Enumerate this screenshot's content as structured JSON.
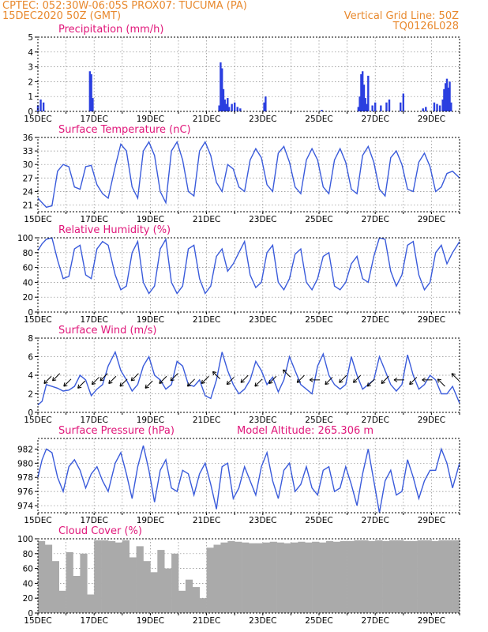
{
  "header": {
    "line1": "CPTEC:   052:30W-06:05S   PROX07: TUCUMA (PA)",
    "line2_left": "15DEC2020 50Z (GMT)",
    "line2_right": "Vertical Grid Line: 50Z",
    "line3_right": "TQ0126L028"
  },
  "colors": {
    "line": "#3a5bdb",
    "bar": "#2b3fe0",
    "cloud": "#aaaaaa",
    "title": "#e0177a",
    "header": "#e8892e",
    "arrow": "#000000"
  },
  "x_axis": {
    "ticks": [
      "15DEC",
      "17DEC",
      "19DEC",
      "21DEC",
      "23DEC",
      "25DEC",
      "27DEC",
      "29DEC"
    ],
    "range_days": [
      15,
      30
    ]
  },
  "chart_data": [
    {
      "id": "precip",
      "type": "bar",
      "title": "Precipitation (mm/h)",
      "ylim": [
        0,
        5
      ],
      "yticks": [
        "0",
        "1",
        "2",
        "3",
        "4",
        "5"
      ],
      "x": [
        15.0,
        15.1,
        15.2,
        16.85,
        16.9,
        16.95,
        21.45,
        21.5,
        21.55,
        21.6,
        21.65,
        21.7,
        21.75,
        21.8,
        21.9,
        22.0,
        22.1,
        22.2,
        23.05,
        23.1,
        25.1,
        26.4,
        26.45,
        26.5,
        26.55,
        26.6,
        26.65,
        26.7,
        26.75,
        26.9,
        27.0,
        27.2,
        27.4,
        27.5,
        27.9,
        28.0,
        28.7,
        28.8,
        29.1,
        29.2,
        29.3,
        29.4,
        29.45,
        29.5,
        29.55,
        29.6,
        29.65,
        29.7
      ],
      "values": [
        0.4,
        0.8,
        0.6,
        2.7,
        2.5,
        0.9,
        0.4,
        3.3,
        2.9,
        1.5,
        0.8,
        0.5,
        0.9,
        0.3,
        0.5,
        0.6,
        0.3,
        0.2,
        0.6,
        1.0,
        0.1,
        0.3,
        1.0,
        2.5,
        2.7,
        1.8,
        0.9,
        0.5,
        2.4,
        0.4,
        0.6,
        0.4,
        0.6,
        0.8,
        0.6,
        1.2,
        0.2,
        0.3,
        0.6,
        0.5,
        0.4,
        0.8,
        1.5,
        1.9,
        2.2,
        1.6,
        2.0,
        0.6
      ]
    },
    {
      "id": "temp",
      "type": "line",
      "title": "Surface Temperature (nC)",
      "ylim": [
        19.5,
        36
      ],
      "yticks": [
        "21",
        "24",
        "27",
        "30",
        "33",
        "36"
      ],
      "x": [
        15.0,
        15.15,
        15.3,
        15.5,
        15.7,
        15.9,
        16.1,
        16.3,
        16.5,
        16.7,
        16.9,
        17.1,
        17.3,
        17.5,
        17.75,
        17.95,
        18.15,
        18.35,
        18.55,
        18.75,
        18.95,
        19.15,
        19.35,
        19.55,
        19.75,
        19.95,
        20.15,
        20.35,
        20.55,
        20.75,
        20.95,
        21.15,
        21.35,
        21.55,
        21.75,
        21.95,
        22.15,
        22.35,
        22.55,
        22.75,
        22.95,
        23.15,
        23.35,
        23.55,
        23.75,
        23.95,
        24.15,
        24.35,
        24.55,
        24.75,
        24.95,
        25.15,
        25.35,
        25.55,
        25.75,
        25.95,
        26.15,
        26.35,
        26.55,
        26.75,
        26.95,
        27.15,
        27.35,
        27.55,
        27.75,
        27.95,
        28.15,
        28.35,
        28.55,
        28.75,
        28.95,
        29.15,
        29.35,
        29.55,
        29.75,
        30.0
      ],
      "values": [
        22.5,
        21.5,
        20.5,
        20.8,
        28.5,
        30.0,
        29.5,
        25.0,
        24.5,
        29.5,
        29.8,
        25.5,
        23.5,
        22.5,
        29.5,
        34.5,
        33.0,
        25.0,
        22.5,
        33.0,
        35.0,
        32.0,
        24.0,
        21.5,
        33.0,
        35.0,
        31.0,
        24.0,
        23.0,
        33.0,
        35.0,
        32.0,
        26.0,
        24.0,
        30.0,
        29.0,
        25.0,
        24.0,
        31.0,
        33.5,
        31.5,
        25.5,
        24.0,
        32.5,
        34.0,
        30.5,
        25.0,
        23.5,
        31.0,
        33.5,
        31.0,
        25.0,
        23.5,
        31.0,
        33.5,
        30.5,
        24.5,
        23.5,
        32.0,
        34.0,
        30.5,
        24.5,
        23.0,
        31.5,
        33.0,
        30.0,
        24.5,
        24.0,
        30.5,
        32.5,
        29.5,
        24.0,
        25.0,
        28.0,
        28.5,
        27.0
      ]
    },
    {
      "id": "rh",
      "type": "line",
      "title": "Relative Humidity (%)",
      "ylim": [
        0,
        100
      ],
      "yticks": [
        "0",
        "20",
        "40",
        "60",
        "80",
        "100"
      ],
      "x": [
        15.0,
        15.15,
        15.3,
        15.5,
        15.7,
        15.9,
        16.1,
        16.3,
        16.5,
        16.7,
        16.9,
        17.1,
        17.3,
        17.5,
        17.75,
        17.95,
        18.15,
        18.35,
        18.55,
        18.75,
        18.95,
        19.15,
        19.35,
        19.55,
        19.75,
        19.95,
        20.15,
        20.35,
        20.55,
        20.75,
        20.95,
        21.15,
        21.35,
        21.55,
        21.75,
        21.95,
        22.15,
        22.35,
        22.55,
        22.75,
        22.95,
        23.15,
        23.35,
        23.55,
        23.75,
        23.95,
        24.15,
        24.35,
        24.55,
        24.75,
        24.95,
        25.15,
        25.35,
        25.55,
        25.75,
        25.95,
        26.15,
        26.35,
        26.55,
        26.75,
        26.95,
        27.15,
        27.35,
        27.55,
        27.75,
        27.95,
        28.15,
        28.35,
        28.55,
        28.75,
        28.95,
        29.15,
        29.35,
        29.55,
        29.75,
        30.0
      ],
      "values": [
        83,
        92,
        98,
        100,
        70,
        45,
        48,
        85,
        90,
        50,
        45,
        85,
        95,
        90,
        50,
        30,
        35,
        80,
        95,
        40,
        25,
        35,
        85,
        98,
        40,
        25,
        35,
        85,
        90,
        45,
        25,
        35,
        75,
        85,
        55,
        65,
        80,
        95,
        50,
        33,
        40,
        80,
        90,
        40,
        30,
        45,
        78,
        85,
        40,
        30,
        45,
        75,
        80,
        35,
        30,
        40,
        65,
        75,
        45,
        40,
        75,
        100,
        98,
        55,
        35,
        50,
        90,
        95,
        50,
        30,
        40,
        80,
        90,
        65,
        80,
        95
      ]
    },
    {
      "id": "wind",
      "type": "line",
      "title": "Surface Wind (m/s)",
      "ylim": [
        0,
        8
      ],
      "yticks": [
        "0",
        "2",
        "4",
        "6",
        "8"
      ],
      "x": [
        15.0,
        15.15,
        15.3,
        15.5,
        15.7,
        15.9,
        16.1,
        16.3,
        16.5,
        16.7,
        16.9,
        17.1,
        17.3,
        17.5,
        17.75,
        17.95,
        18.15,
        18.35,
        18.55,
        18.75,
        18.95,
        19.15,
        19.35,
        19.55,
        19.75,
        19.95,
        20.15,
        20.35,
        20.55,
        20.75,
        20.95,
        21.15,
        21.35,
        21.55,
        21.75,
        21.95,
        22.15,
        22.35,
        22.55,
        22.75,
        22.95,
        23.15,
        23.35,
        23.55,
        23.75,
        23.95,
        24.15,
        24.35,
        24.55,
        24.75,
        24.95,
        25.15,
        25.35,
        25.55,
        25.75,
        25.95,
        26.15,
        26.35,
        26.55,
        26.75,
        26.95,
        27.15,
        27.35,
        27.55,
        27.75,
        27.95,
        28.15,
        28.35,
        28.55,
        28.75,
        28.95,
        29.15,
        29.35,
        29.55,
        29.75,
        30.0
      ],
      "values": [
        0.8,
        1.2,
        3.0,
        2.8,
        2.6,
        2.3,
        2.4,
        2.8,
        4.0,
        3.5,
        1.8,
        2.5,
        3.0,
        5.0,
        6.5,
        4.5,
        3.5,
        2.3,
        3.0,
        5.0,
        6.0,
        4.0,
        3.5,
        2.5,
        3.0,
        5.5,
        5.0,
        3.0,
        2.8,
        3.5,
        1.8,
        1.5,
        3.5,
        6.5,
        4.5,
        3.0,
        2.0,
        2.5,
        3.5,
        5.5,
        4.5,
        3.0,
        3.8,
        2.2,
        3.5,
        6.0,
        4.5,
        3.0,
        2.5,
        2.0,
        5.0,
        6.3,
        4.0,
        3.0,
        2.5,
        3.0,
        6.0,
        4.0,
        2.5,
        3.0,
        3.5,
        6.0,
        4.5,
        3.0,
        2.3,
        3.0,
        6.2,
        4.0,
        2.5,
        3.0,
        4.0,
        3.5,
        2.0,
        2.0,
        2.8,
        1.0
      ],
      "arrows_x": [
        15.35,
        15.65,
        16.05,
        16.55,
        17.05,
        17.35,
        17.65,
        18.05,
        18.45,
        18.95,
        19.45,
        19.85,
        20.45,
        20.95,
        21.35,
        21.85,
        22.35,
        22.85,
        23.35,
        23.85,
        24.35,
        24.85,
        25.35,
        25.85,
        26.35,
        26.85,
        27.35,
        27.85,
        28.35,
        28.85,
        29.35,
        29.85
      ],
      "arrows_dir": [
        "SW",
        "SW",
        "SW",
        "SW",
        "SW",
        "SW",
        "SW",
        "SW",
        "SW",
        "SW",
        "SW",
        "SW",
        "SW",
        "SW",
        "NW",
        "SW",
        "SW",
        "SW",
        "SW",
        "NW",
        "SW",
        "W",
        "SW",
        "SW",
        "SW",
        "SW",
        "SW",
        "W",
        "SW",
        "W",
        "NW",
        "NW"
      ],
      "arrows_y": [
        3.5,
        3.8,
        3.2,
        3.0,
        3.4,
        3.8,
        3.5,
        3.2,
        3.8,
        3.0,
        3.5,
        3.8,
        3.2,
        3.5,
        4.0,
        3.4,
        3.6,
        3.2,
        3.5,
        4.2,
        3.6,
        3.5,
        3.4,
        3.6,
        3.6,
        3.2,
        3.5,
        3.5,
        3.4,
        3.5,
        3.2,
        3.8
      ]
    },
    {
      "id": "pressure",
      "type": "line",
      "title": "Surface Pressure (hPa)",
      "annotation": "Model Altitude: 265.306 m",
      "ylim": [
        973,
        983.5
      ],
      "yticks": [
        "974",
        "976",
        "978",
        "980",
        "982"
      ],
      "x": [
        15.0,
        15.15,
        15.3,
        15.5,
        15.7,
        15.9,
        16.1,
        16.3,
        16.5,
        16.7,
        16.9,
        17.1,
        17.3,
        17.5,
        17.75,
        17.95,
        18.15,
        18.35,
        18.55,
        18.75,
        18.95,
        19.15,
        19.35,
        19.55,
        19.75,
        19.95,
        20.15,
        20.35,
        20.55,
        20.75,
        20.95,
        21.15,
        21.35,
        21.55,
        21.75,
        21.95,
        22.15,
        22.35,
        22.55,
        22.75,
        22.95,
        23.15,
        23.35,
        23.55,
        23.75,
        23.95,
        24.15,
        24.35,
        24.55,
        24.75,
        24.95,
        25.15,
        25.35,
        25.55,
        25.75,
        25.95,
        26.15,
        26.35,
        26.55,
        26.75,
        26.95,
        27.15,
        27.35,
        27.55,
        27.75,
        27.95,
        28.15,
        28.35,
        28.55,
        28.75,
        28.95,
        29.15,
        29.35,
        29.55,
        29.75,
        30.0
      ],
      "values": [
        978.0,
        980.5,
        982.0,
        981.5,
        978.0,
        976.0,
        979.5,
        980.5,
        979.0,
        976.5,
        978.5,
        979.5,
        977.5,
        976.0,
        980.0,
        981.5,
        978.5,
        975.0,
        979.5,
        982.5,
        979.0,
        974.5,
        979.0,
        980.5,
        976.5,
        976.0,
        979.0,
        978.5,
        975.5,
        978.5,
        980.0,
        977.0,
        973.5,
        979.5,
        980.0,
        975.0,
        976.5,
        979.5,
        977.5,
        975.5,
        979.5,
        981.5,
        977.5,
        975.0,
        979.0,
        980.0,
        976.0,
        977.0,
        979.5,
        976.5,
        975.5,
        979.0,
        979.5,
        976.0,
        976.5,
        979.5,
        977.0,
        974.0,
        978.5,
        982.0,
        977.5,
        973.0,
        977.5,
        979.0,
        975.5,
        976.0,
        980.5,
        978.0,
        975.0,
        977.5,
        979.0,
        979.0,
        982.0,
        980.0,
        976.5,
        980.0
      ]
    },
    {
      "id": "cloud",
      "type": "bar",
      "title": "Cloud Cover (%)",
      "ylim": [
        0,
        100
      ],
      "yticks": [
        "0",
        "20",
        "40",
        "60",
        "80",
        "100"
      ],
      "x": [
        15.0,
        15.25,
        15.5,
        15.75,
        16.0,
        16.25,
        16.5,
        16.75,
        17.0,
        17.25,
        17.5,
        17.75,
        18.0,
        18.25,
        18.5,
        18.75,
        19.0,
        19.25,
        19.5,
        19.75,
        20.0,
        20.25,
        20.5,
        20.75,
        21.0,
        21.25,
        21.5,
        21.75,
        22.0,
        22.25,
        22.5,
        22.75,
        23.0,
        23.25,
        23.5,
        23.75,
        24.0,
        24.25,
        24.5,
        24.75,
        25.0,
        25.25,
        25.5,
        25.75,
        26.0,
        26.25,
        26.5,
        26.75,
        27.0,
        27.25,
        27.5,
        27.75,
        28.0,
        28.25,
        28.5,
        28.75,
        29.0,
        29.25,
        29.5,
        29.75
      ],
      "values": [
        97,
        92,
        70,
        30,
        82,
        50,
        80,
        25,
        98,
        98,
        97,
        95,
        98,
        75,
        90,
        70,
        55,
        85,
        60,
        80,
        30,
        45,
        35,
        20,
        88,
        92,
        95,
        97,
        96,
        95,
        94,
        94,
        95,
        96,
        95,
        94,
        95,
        96,
        95,
        96,
        95,
        97,
        96,
        97,
        97,
        98,
        98,
        97,
        98,
        97,
        98,
        98,
        97,
        97,
        98,
        98,
        97,
        98,
        98,
        98
      ]
    }
  ]
}
